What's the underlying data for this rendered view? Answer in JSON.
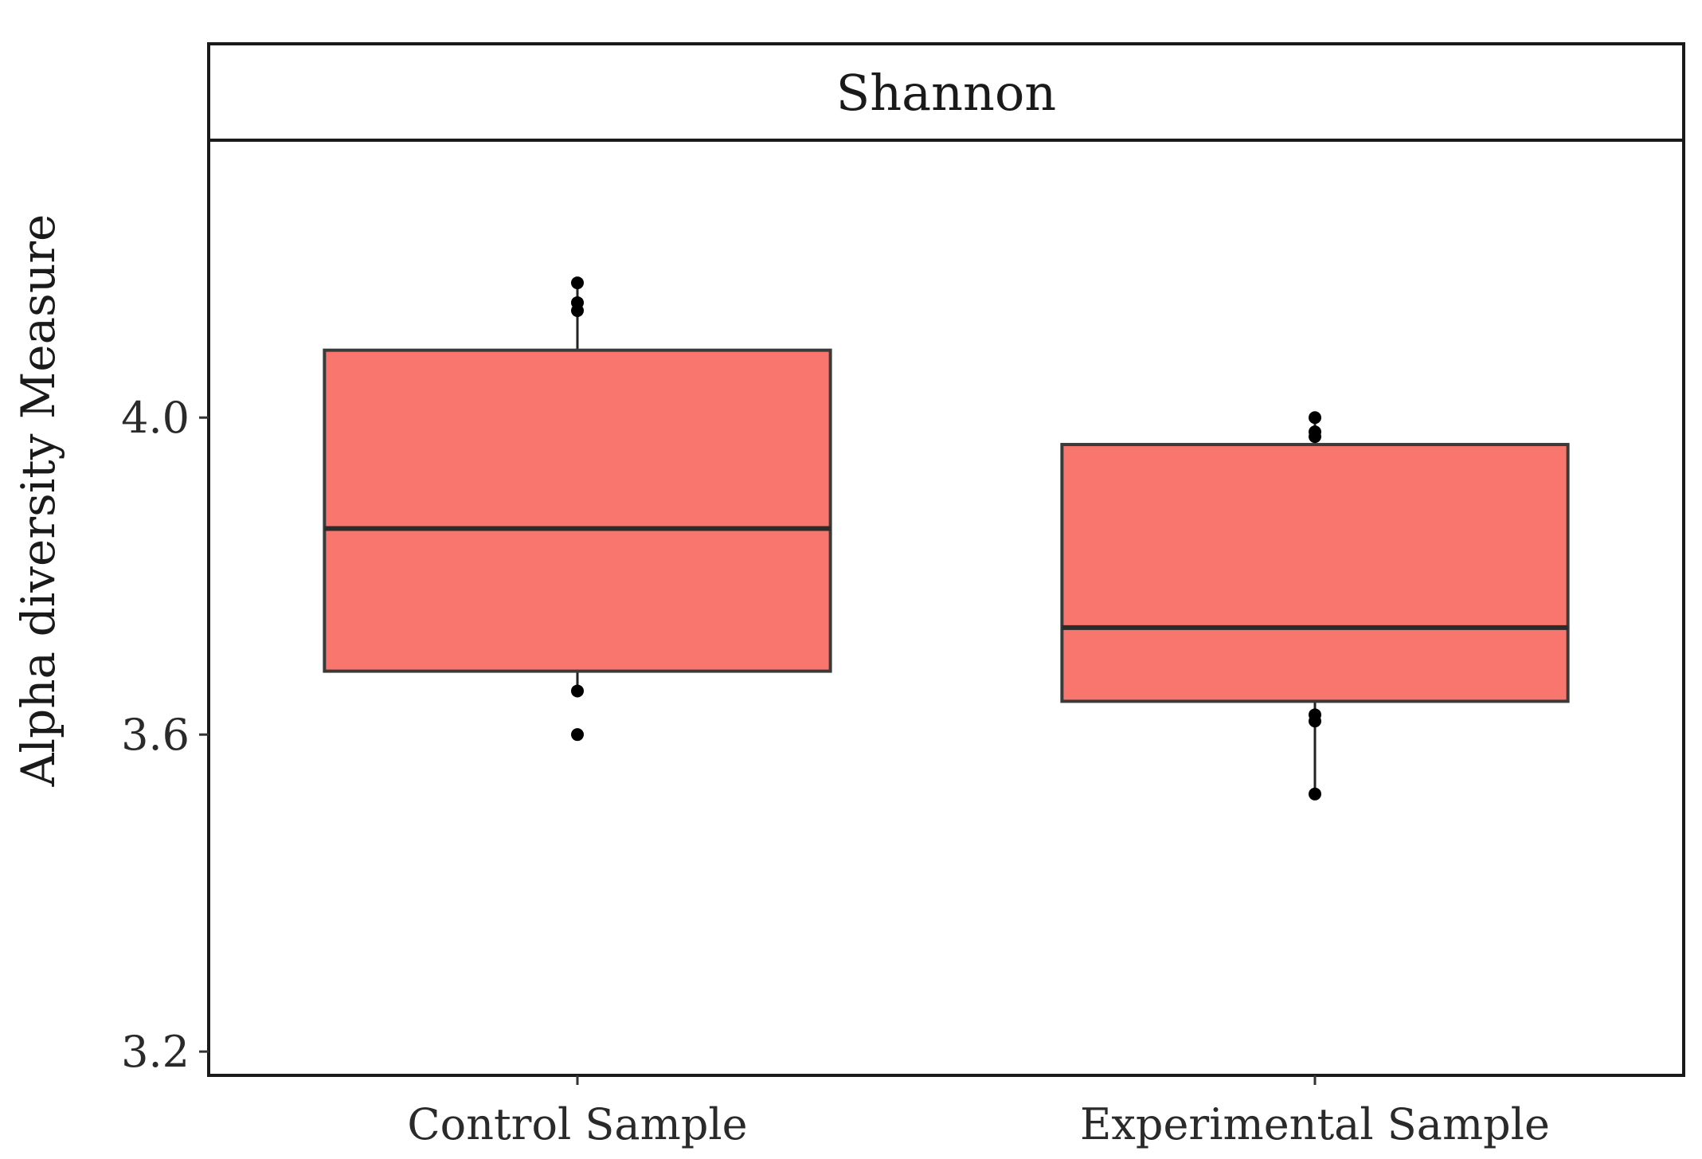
{
  "chart_data": {
    "type": "boxplot",
    "facet_title": "Shannon",
    "xlabel": "",
    "ylabel": "Alpha diversity Measure",
    "ylim": [
      3.17,
      4.35
    ],
    "yticks": [
      3.2,
      3.6,
      4.0
    ],
    "ytick_labels": [
      "3.2",
      "3.6",
      "4.0"
    ],
    "fill_color": "#f8766d",
    "categories": [
      "Control Sample",
      "Experimental Sample"
    ],
    "boxes": [
      {
        "category": "Control Sample",
        "whisker_low": 3.655,
        "q1": 3.68,
        "median": 3.86,
        "q3": 4.085,
        "whisker_high": 4.17,
        "points": [
          4.17,
          4.145,
          4.135,
          3.655,
          3.6
        ]
      },
      {
        "category": "Experimental Sample",
        "whisker_low": 3.525,
        "q1": 3.642,
        "median": 3.735,
        "q3": 3.966,
        "whisker_high": 4.0,
        "points": [
          4.0,
          3.982,
          3.976,
          3.625,
          3.617,
          3.525
        ]
      }
    ]
  }
}
